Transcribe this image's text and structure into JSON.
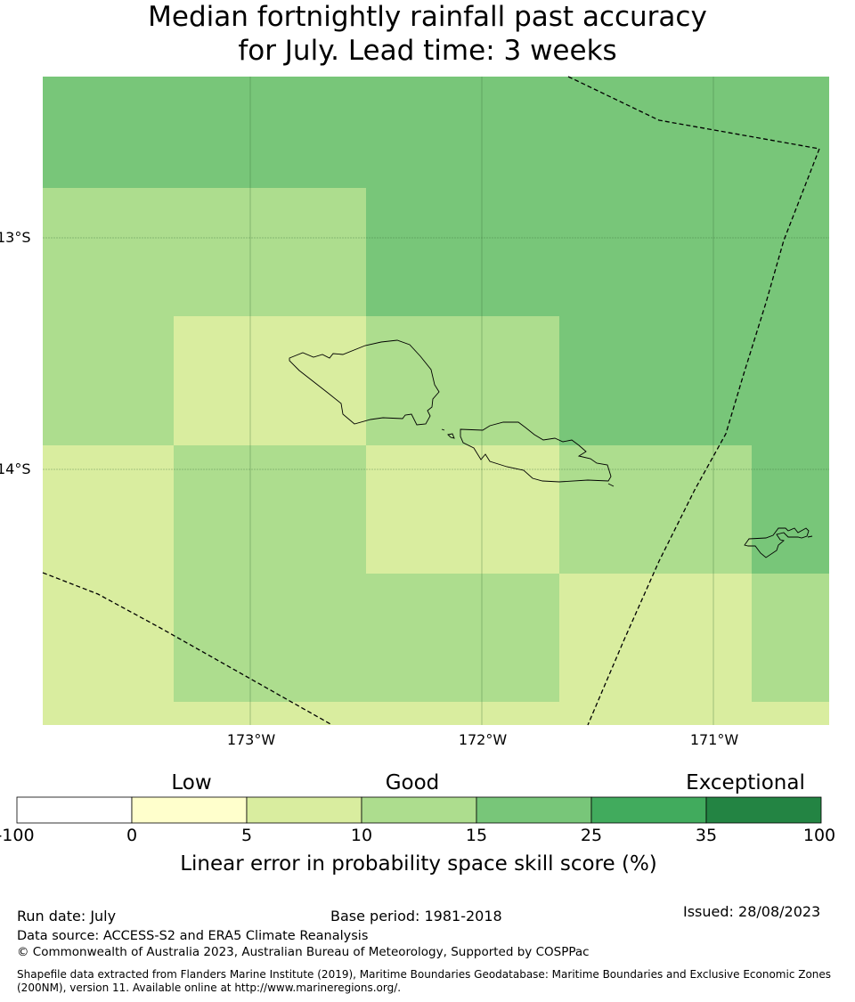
{
  "title_line1": "Median fortnightly rainfall past accuracy",
  "title_line2": "for July. Lead time: 3 weeks",
  "map": {
    "lat_labels": [
      "13°S",
      "14°S"
    ],
    "lon_labels": [
      "173°W",
      "172°W",
      "171°W"
    ],
    "boundary_line_style": "dashed",
    "grid": true
  },
  "colorbar": {
    "categories": [
      "Low",
      "Good",
      "Exceptional"
    ],
    "ticks": [
      "-100",
      "0",
      "5",
      "10",
      "15",
      "25",
      "35",
      "100"
    ],
    "colors": [
      "#ffffff",
      "#ffffcc",
      "#d9ed9f",
      "#addd8e",
      "#78c679",
      "#41ab5d",
      "#238443"
    ],
    "label": "Linear error in probability space skill score (%)"
  },
  "footer": {
    "run_date": "Run date: July",
    "base_period": "Base period: 1981-2018",
    "issued": "Issued: 28/08/2023",
    "data_source": "Data source: ACCESS-S2 and ERA5 Climate Reanalysis",
    "copyright": "© Commonwealth of Australia 2023, Australian Bureau of Meteorology, Supported by COSPPac",
    "shapefile_note": "Shapefile data extracted from Flanders Marine Institute (2019), Maritime Boundaries Geodatabase: Maritime Boundaries and Exclusive Economic Zones (200NM), version 11. Available online at http://www.marineregions.org/."
  }
}
